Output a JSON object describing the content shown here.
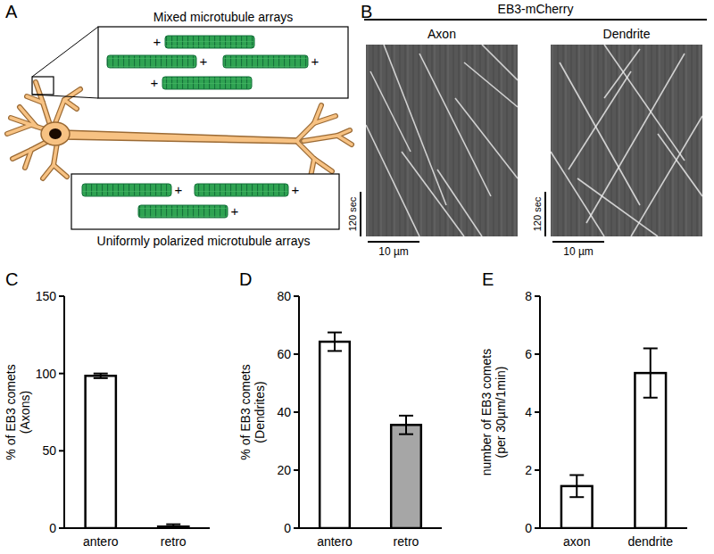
{
  "figure": {
    "panel_labels": [
      "A",
      "B",
      "C",
      "D",
      "E"
    ]
  },
  "diagram": {
    "mixed_label": "Mixed microtubule arrays",
    "uniform_label": "Uniformly polarized microtubule arrays",
    "mixed_plus_ends": [
      "+",
      "+",
      "+",
      "+"
    ],
    "uniform_plus_ends": [
      "+",
      "+",
      "+"
    ]
  },
  "kymographs": {
    "title": "EB3-mCherry",
    "labels": [
      "Axon",
      "Dendrite"
    ],
    "time_bar": "120 sec",
    "length_bar": "10 µm"
  },
  "chart_data": [
    {
      "type": "bar",
      "ylabel": [
        "% of EB3 comets",
        "(Axons)"
      ],
      "categories": [
        "antero",
        "retro"
      ],
      "values": [
        98.5,
        1
      ],
      "errors": [
        1.5,
        1.5
      ],
      "colors": [
        "#ffffff",
        "#ffffff"
      ],
      "ylim": [
        0,
        150
      ],
      "yticks": [
        0,
        50,
        100,
        150
      ]
    },
    {
      "type": "bar",
      "ylabel": [
        "% of EB3 comets",
        "(Dendrites)"
      ],
      "categories": [
        "antero",
        "retro"
      ],
      "values": [
        64.3,
        35.6
      ],
      "errors": [
        3.2,
        3.2
      ],
      "colors": [
        "#ffffff",
        "#a6a6a6"
      ],
      "ylim": [
        0,
        80
      ],
      "yticks": [
        0,
        20,
        40,
        60,
        80
      ]
    },
    {
      "type": "bar",
      "ylabel": [
        "number of EB3 comets",
        "(per 30µm/1min)"
      ],
      "categories": [
        "axon",
        "dendrite"
      ],
      "values": [
        1.45,
        5.35
      ],
      "errors": [
        0.38,
        0.85
      ],
      "colors": [
        "#ffffff",
        "#ffffff"
      ],
      "ylim": [
        0,
        8
      ],
      "yticks": [
        0,
        2,
        4,
        6,
        8
      ]
    }
  ]
}
